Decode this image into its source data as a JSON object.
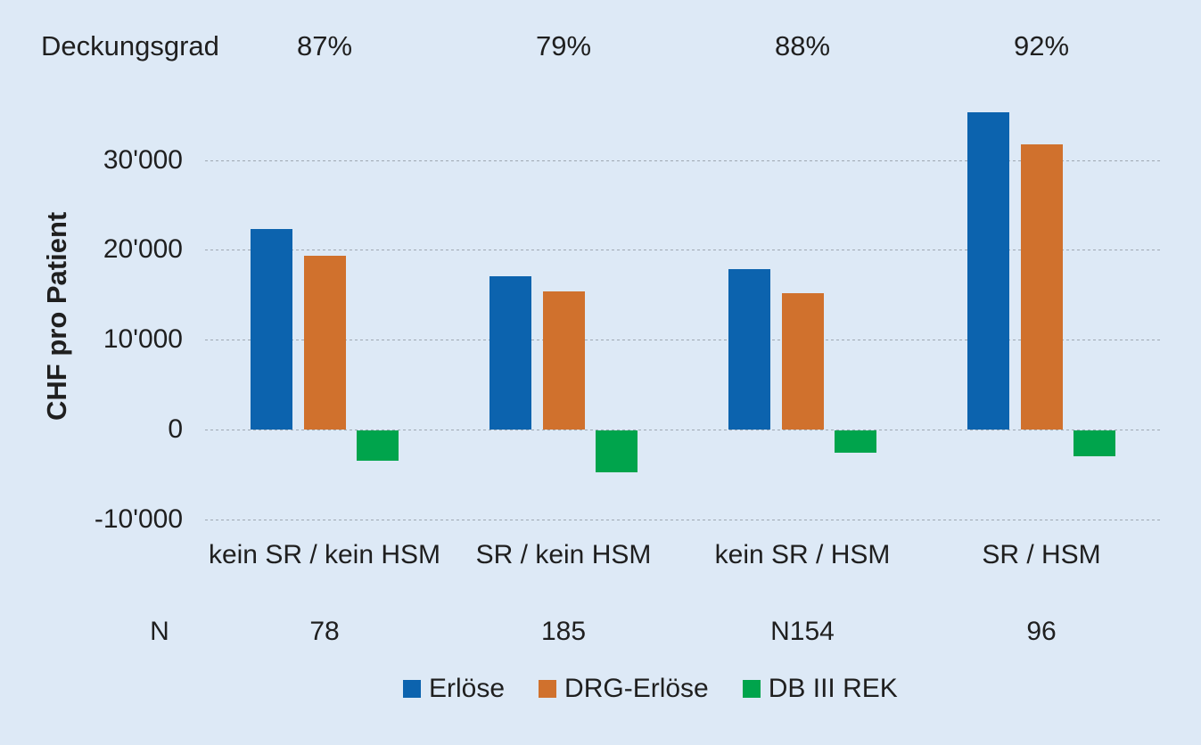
{
  "chart_data": {
    "type": "bar",
    "title_row": {
      "label": "Deckungsgrad",
      "values": [
        "87%",
        "79%",
        "88%",
        "92%"
      ]
    },
    "categories": [
      "kein SR / kein HSM",
      "SR / kein HSM",
      "kein SR / HSM",
      "SR / HSM"
    ],
    "series": [
      {
        "name": "Erlöse",
        "color": "#0c63ae",
        "values": [
          22300,
          17100,
          17900,
          35300
        ]
      },
      {
        "name": "DRG-Erlöse",
        "color": "#d0712d",
        "values": [
          19300,
          15400,
          15200,
          31700
        ]
      },
      {
        "name": "DB III REK",
        "color": "#00a44c",
        "values": [
          -3400,
          -4700,
          -2500,
          -2900
        ]
      }
    ],
    "ylabel": "CHF pro Patient",
    "xlabel": "",
    "yticks": [
      30000,
      20000,
      10000,
      0,
      -10000
    ],
    "ytick_labels": [
      "30'000",
      "20'000",
      "10'000",
      "0",
      "-10'000"
    ],
    "ylim": [
      -11700,
      37900
    ],
    "n_row": {
      "label": "N",
      "values": [
        "78",
        "185",
        "N154",
        "96"
      ]
    },
    "grid": "horizontal-dashed",
    "legend_position": "bottom"
  },
  "colors": {
    "background": "#dde9f6",
    "text": "#1f1f1f",
    "gridline": "#9fa8b2",
    "erloese": "#0c63ae",
    "drg_erloese": "#d0712d",
    "db_iii_rek": "#00a44c"
  }
}
